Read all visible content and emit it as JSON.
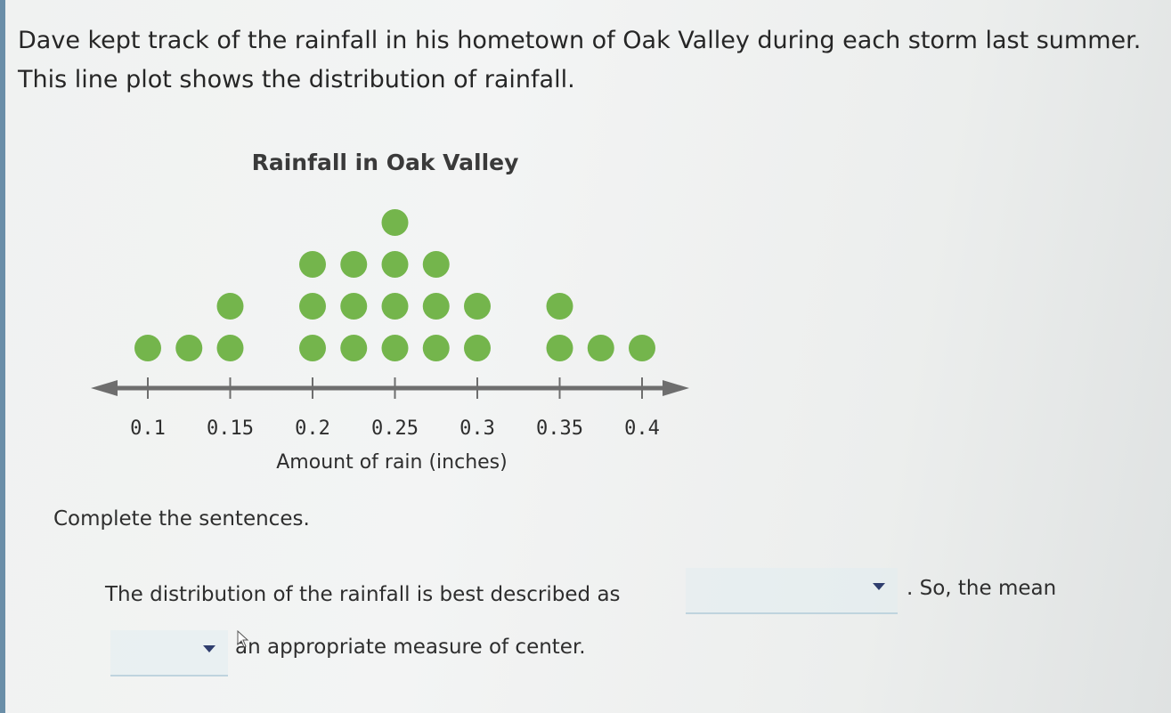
{
  "intro": {
    "line1": "Dave kept track of the rainfall in his hometown of Oak Valley during each storm last summer.",
    "line2": "This line plot shows the distribution of rainfall."
  },
  "chart_data": {
    "type": "scatter",
    "title": "Rainfall in Oak Valley",
    "xlabel": "Amount of rain (inches)",
    "ylabel": "",
    "tick_labels": [
      "0.1",
      "0.15",
      "0.2",
      "0.25",
      "0.3",
      "0.35",
      "0.4"
    ],
    "x": [
      0.1,
      0.125,
      0.15,
      0.2,
      0.225,
      0.25,
      0.275,
      0.3,
      0.35,
      0.375,
      0.4
    ],
    "counts": [
      1,
      1,
      2,
      3,
      3,
      4,
      3,
      2,
      2,
      1,
      1
    ],
    "dot_color": "#74b54c",
    "axis_color": "#6e6e6e",
    "grid": false
  },
  "question": {
    "instructions": "Complete the sentences.",
    "sentence1_start": "The distribution of the rainfall is best described as",
    "sentence1_end": ". So, the mean",
    "sentence2_end": "an appropriate measure of center.",
    "dropdown1_value": "",
    "dropdown2_value": "",
    "dropdown_icon": "chevron-down-icon"
  },
  "cursor": {
    "icon": "mouse-pointer-icon"
  }
}
